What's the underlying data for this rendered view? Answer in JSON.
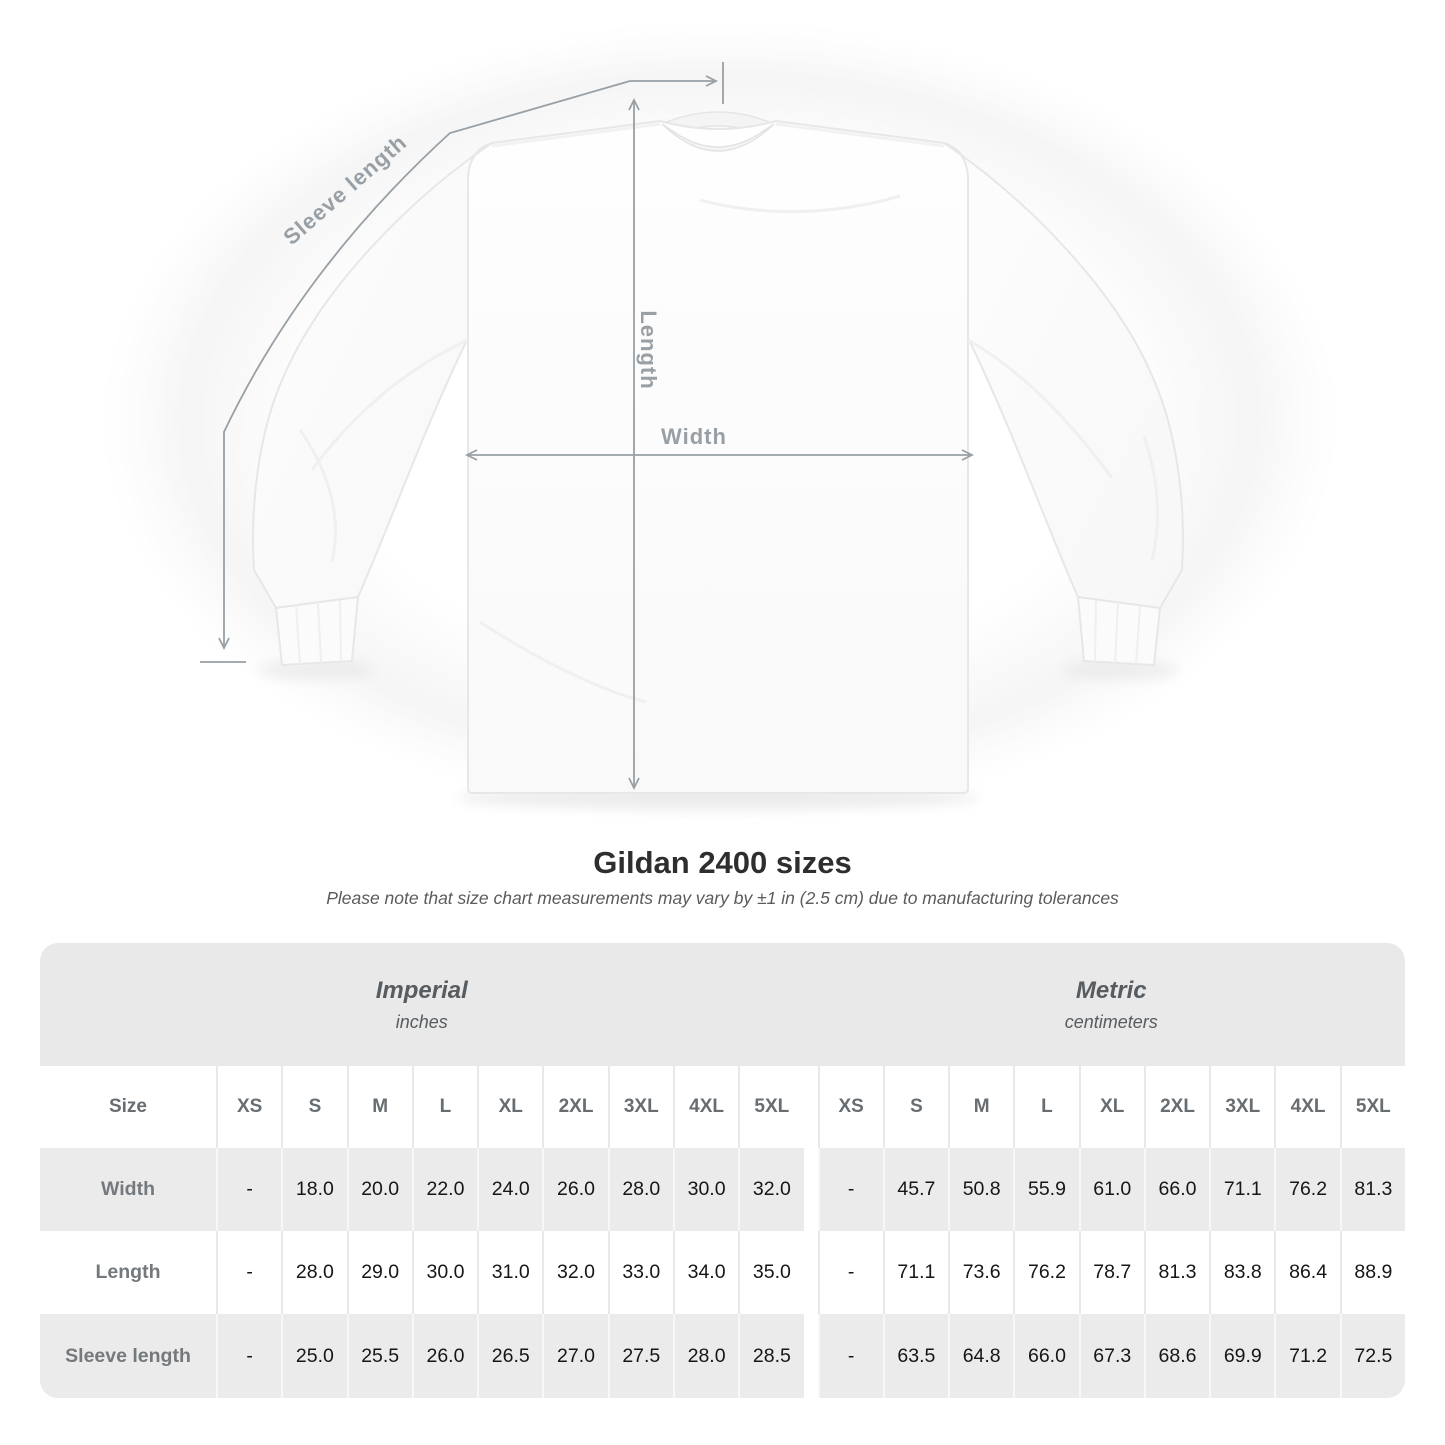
{
  "illustration": {
    "sleeve_length_label": "Sleeve length",
    "length_label": "Length",
    "width_label": "Width"
  },
  "chart_data": {
    "type": "table",
    "title": "Gildan 2400 sizes",
    "subtitle": "Please note that size chart measurements may vary by ±1 in (2.5 cm) due to manufacturing tolerances",
    "groups": [
      {
        "label": "Imperial",
        "unit": "inches"
      },
      {
        "label": "Metric",
        "unit": "centimeters"
      }
    ],
    "size_header": "Size",
    "sizes": [
      "XS",
      "S",
      "M",
      "L",
      "XL",
      "2XL",
      "3XL",
      "4XL",
      "5XL"
    ],
    "rows": [
      {
        "label": "Width",
        "imperial": [
          "-",
          "18.0",
          "20.0",
          "22.0",
          "24.0",
          "26.0",
          "28.0",
          "30.0",
          "32.0"
        ],
        "metric": [
          "-",
          "45.7",
          "50.8",
          "55.9",
          "61.0",
          "66.0",
          "71.1",
          "76.2",
          "81.3"
        ]
      },
      {
        "label": "Length",
        "imperial": [
          "-",
          "28.0",
          "29.0",
          "30.0",
          "31.0",
          "32.0",
          "33.0",
          "34.0",
          "35.0"
        ],
        "metric": [
          "-",
          "71.1",
          "73.6",
          "76.2",
          "78.7",
          "81.3",
          "83.8",
          "86.4",
          "88.9"
        ]
      },
      {
        "label": "Sleeve length",
        "imperial": [
          "-",
          "25.0",
          "25.5",
          "26.0",
          "26.5",
          "27.0",
          "27.5",
          "28.0",
          "28.5"
        ],
        "metric": [
          "-",
          "63.5",
          "64.8",
          "66.0",
          "67.3",
          "68.6",
          "69.9",
          "71.2",
          "72.5"
        ]
      }
    ]
  },
  "colors": {
    "annotation_gray": "#98a0a6",
    "band_gray": "#e9e9e9",
    "alt_row_gray": "#ebebeb",
    "title_text": "#2e2e2e",
    "value_text": "#161616"
  }
}
